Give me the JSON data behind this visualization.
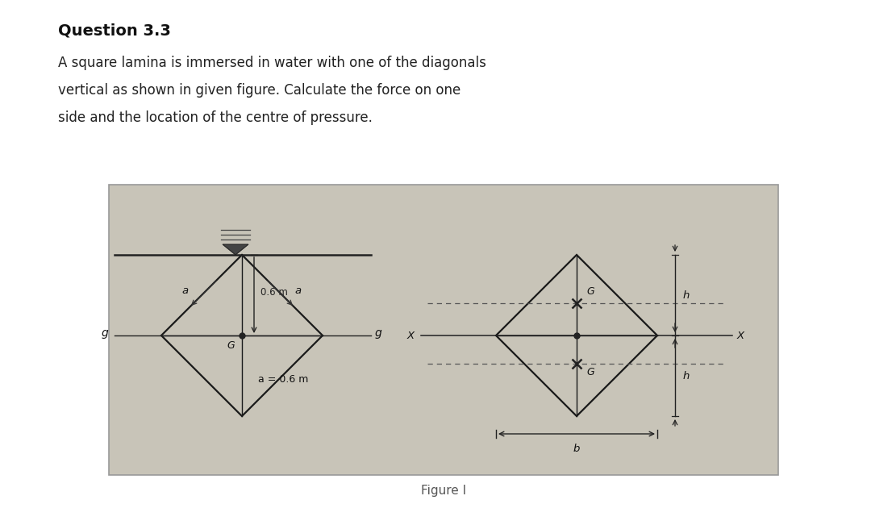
{
  "title": "Question 3.3",
  "desc_line1": "A square lamina is immersed in water with one of the diagonals",
  "desc_line2": "vertical as shown in given figure. Calculate the force on one",
  "desc_line3": "side and the location of the centre of pressure.",
  "fig_label": "Figure I",
  "page_bg": "#ffffff",
  "panel_bg": "#c8c4b8",
  "panel_edge": "#999999",
  "diamond_color": "#1a1a1a",
  "line_color": "#333333",
  "dashed_color": "#555555",
  "dim_0p6": "0.6 m",
  "label_a": "a",
  "label_g_lower": "g",
  "label_G": "G",
  "label_a_eq": "a = 0.6 m",
  "label_X": "X",
  "label_b": "b",
  "label_h": "h",
  "title_fontsize": 14,
  "desc_fontsize": 12,
  "fig_label_fontsize": 11
}
